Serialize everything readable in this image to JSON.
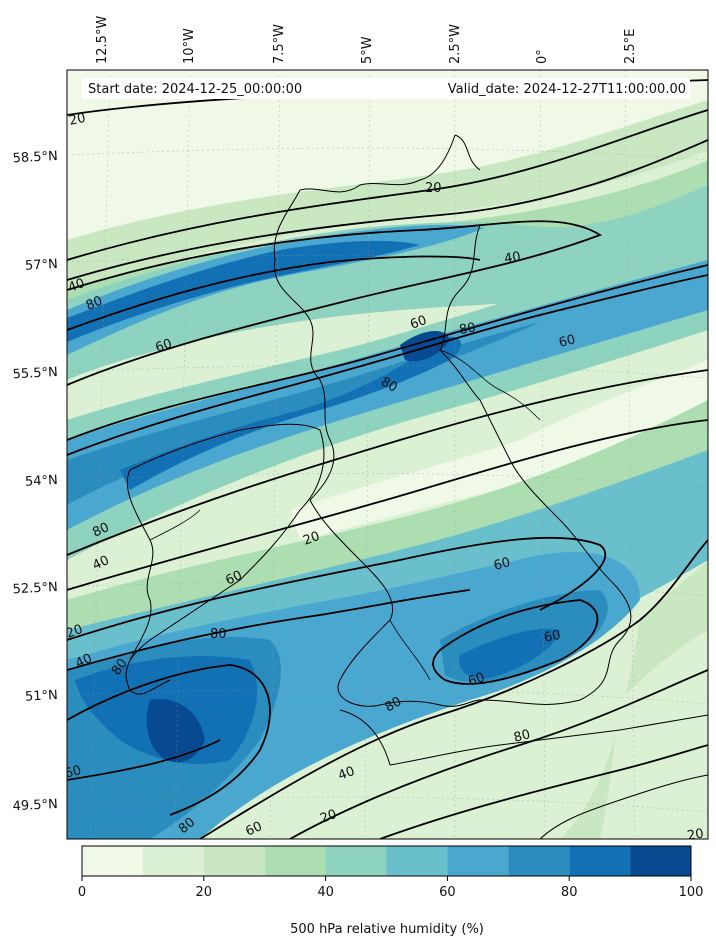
{
  "map": {
    "start_label": "Start date: 2024-12-25_00:00:00",
    "valid_label": "Valid_date: 2024-12-27T11:00:00.00",
    "lon_ticks": [
      "12.5°W",
      "10°W",
      "7.5°W",
      "5°W",
      "2.5°W",
      "0°",
      "2.5°E"
    ],
    "lat_ticks": [
      "58.5°N",
      "57°N",
      "55.5°N",
      "54°N",
      "52.5°N",
      "51°N",
      "49.5°N"
    ],
    "contour_labels": [
      {
        "text": "20"
      },
      {
        "text": "20"
      },
      {
        "text": "40"
      },
      {
        "text": "80"
      },
      {
        "text": "60"
      },
      {
        "text": "40"
      },
      {
        "text": "60"
      },
      {
        "text": "80"
      },
      {
        "text": "80"
      },
      {
        "text": "60"
      },
      {
        "text": "80"
      },
      {
        "text": "40"
      },
      {
        "text": "20"
      },
      {
        "text": "60"
      },
      {
        "text": "60"
      },
      {
        "text": "60"
      },
      {
        "text": "80"
      },
      {
        "text": "20"
      },
      {
        "text": "40"
      },
      {
        "text": "80"
      },
      {
        "text": "60"
      },
      {
        "text": "80"
      },
      {
        "text": "60"
      },
      {
        "text": "40"
      },
      {
        "text": "20"
      },
      {
        "text": "20"
      },
      {
        "text": "60"
      },
      {
        "text": "80"
      },
      {
        "text": "80"
      }
    ]
  },
  "colorbar": {
    "label": "500 hPa relative humidity (%)",
    "ticks": [
      "0",
      "20",
      "40",
      "60",
      "80",
      "100"
    ],
    "levels": [
      0,
      10,
      20,
      30,
      40,
      50,
      60,
      70,
      80,
      90,
      100
    ],
    "colors": [
      "#f0f9e8",
      "#dcf0d3",
      "#c9e8c2",
      "#addeb2",
      "#8dd3c0",
      "#69bfcb",
      "#4aa8d0",
      "#2b8cbe",
      "#1270b4",
      "#084a91"
    ]
  }
}
